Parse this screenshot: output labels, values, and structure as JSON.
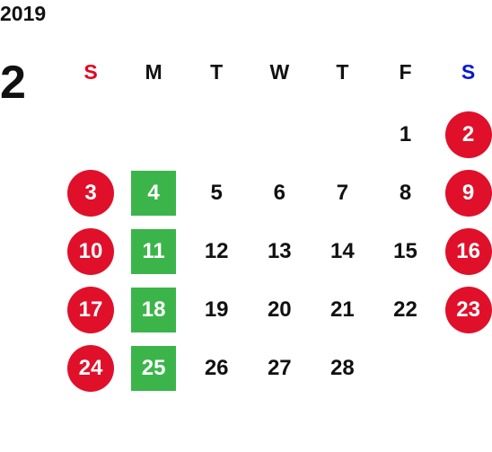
{
  "year": "2019",
  "month": "2",
  "weekdays": [
    "S",
    "M",
    "T",
    "W",
    "T",
    "F",
    "S"
  ],
  "weeks": [
    [
      null,
      null,
      null,
      null,
      null,
      1,
      2
    ],
    [
      3,
      4,
      5,
      6,
      7,
      8,
      9
    ],
    [
      10,
      11,
      12,
      13,
      14,
      15,
      16
    ],
    [
      17,
      18,
      19,
      20,
      21,
      22,
      23
    ],
    [
      24,
      25,
      26,
      27,
      28,
      null,
      null
    ]
  ]
}
